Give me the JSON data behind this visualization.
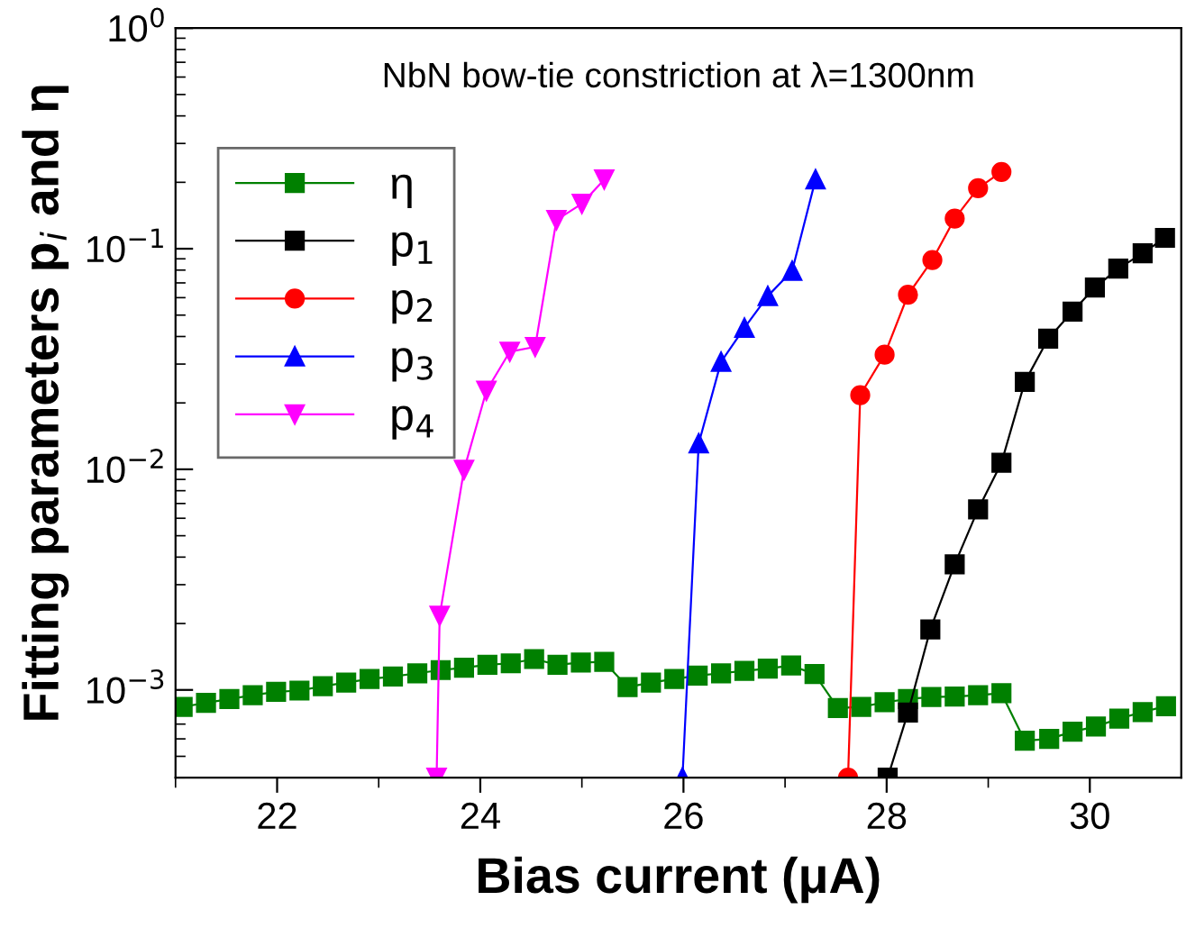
{
  "chart_data": {
    "type": "line",
    "xlabel": "Bias current (μA)",
    "ylabel": "Fitting parameters p$_{i}$ and η",
    "log": "y",
    "xlim": [
      21,
      30.9
    ],
    "ylim": [
      0.0004,
      1
    ],
    "xticks": [
      22,
      24,
      26,
      28,
      30
    ],
    "yticks": [
      {
        "value": 0.001,
        "label": "10$^{−3}$"
      },
      {
        "value": 0.01,
        "label": "10$^{−2}$"
      },
      {
        "value": 0.1,
        "label": "10$^{−1}$"
      },
      {
        "value": 1,
        "label": "10$^{0}$"
      }
    ],
    "annotations": [
      "NbN bow-tie constriction at λ=1300nm"
    ],
    "legend": "top left",
    "grid": false,
    "line_style": "solid",
    "series": [
      {
        "name": "η",
        "color": "#008000",
        "marker": "square",
        "x": [
          21.07,
          21.3,
          21.53,
          21.76,
          21.99,
          22.22,
          22.45,
          22.68,
          22.91,
          23.14,
          23.38,
          23.61,
          23.84,
          24.07,
          24.3,
          24.53,
          24.76,
          24.99,
          25.22,
          25.45,
          25.68,
          25.91,
          26.14,
          26.37,
          26.6,
          26.83,
          27.06,
          27.29,
          27.52,
          27.75,
          27.98,
          28.21,
          28.44,
          28.67,
          28.9,
          29.13,
          29.36,
          29.6,
          29.83,
          30.06,
          30.29,
          30.52,
          30.75
        ],
        "values": [
          0.000838,
          0.000873,
          0.000909,
          0.000947,
          0.00098,
          0.000993,
          0.00104,
          0.00108,
          0.00112,
          0.00115,
          0.00119,
          0.00123,
          0.00126,
          0.0013,
          0.00132,
          0.00138,
          0.0013,
          0.00133,
          0.00134,
          0.00103,
          0.00108,
          0.00112,
          0.00116,
          0.00119,
          0.00122,
          0.00125,
          0.00129,
          0.00118,
          0.000827,
          0.000838,
          0.000879,
          0.000909,
          0.000928,
          0.000934,
          0.000947,
          0.000966,
          0.000588,
          0.0006,
          0.000647,
          0.000683,
          0.000741,
          0.000794,
          0.000844
        ]
      },
      {
        "name": "p$_{1}$",
        "color": "#000000",
        "marker": "square",
        "x": [
          28.01,
          28.21,
          28.43,
          28.67,
          28.9,
          29.13,
          29.36,
          29.59,
          29.83,
          30.05,
          30.28,
          30.52,
          30.74
        ],
        "values": [
          0.0004,
          0.00079,
          0.00188,
          0.00371,
          0.00658,
          0.0107,
          0.0249,
          0.0391,
          0.0519,
          0.0667,
          0.0813,
          0.0953,
          0.112
        ]
      },
      {
        "name": "p$_{2}$",
        "color": "#ff0000",
        "marker": "circle",
        "x": [
          27.62,
          27.74,
          27.98,
          28.21,
          28.45,
          28.67,
          28.9,
          29.13
        ],
        "values": [
          0.0004,
          0.0217,
          0.0331,
          0.0618,
          0.0889,
          0.137,
          0.188,
          0.223
        ]
      },
      {
        "name": "p$_{3}$",
        "color": "#0000ff",
        "marker": "triangle",
        "x": [
          25.99,
          26.15,
          26.37,
          26.6,
          26.83,
          27.07,
          27.3
        ],
        "values": [
          0.0004,
          0.0131,
          0.0307,
          0.0438,
          0.061,
          0.0794,
          0.206
        ]
      },
      {
        "name": "p$_{4}$",
        "color": "#ff00ff",
        "marker": "triangle_down",
        "x": [
          23.57,
          23.6,
          23.84,
          24.06,
          24.29,
          24.54,
          24.75,
          25.0,
          25.22
        ],
        "values": [
          0.0004,
          0.00217,
          0.00995,
          0.0227,
          0.0341,
          0.0359,
          0.135,
          0.16,
          0.206
        ]
      }
    ]
  }
}
